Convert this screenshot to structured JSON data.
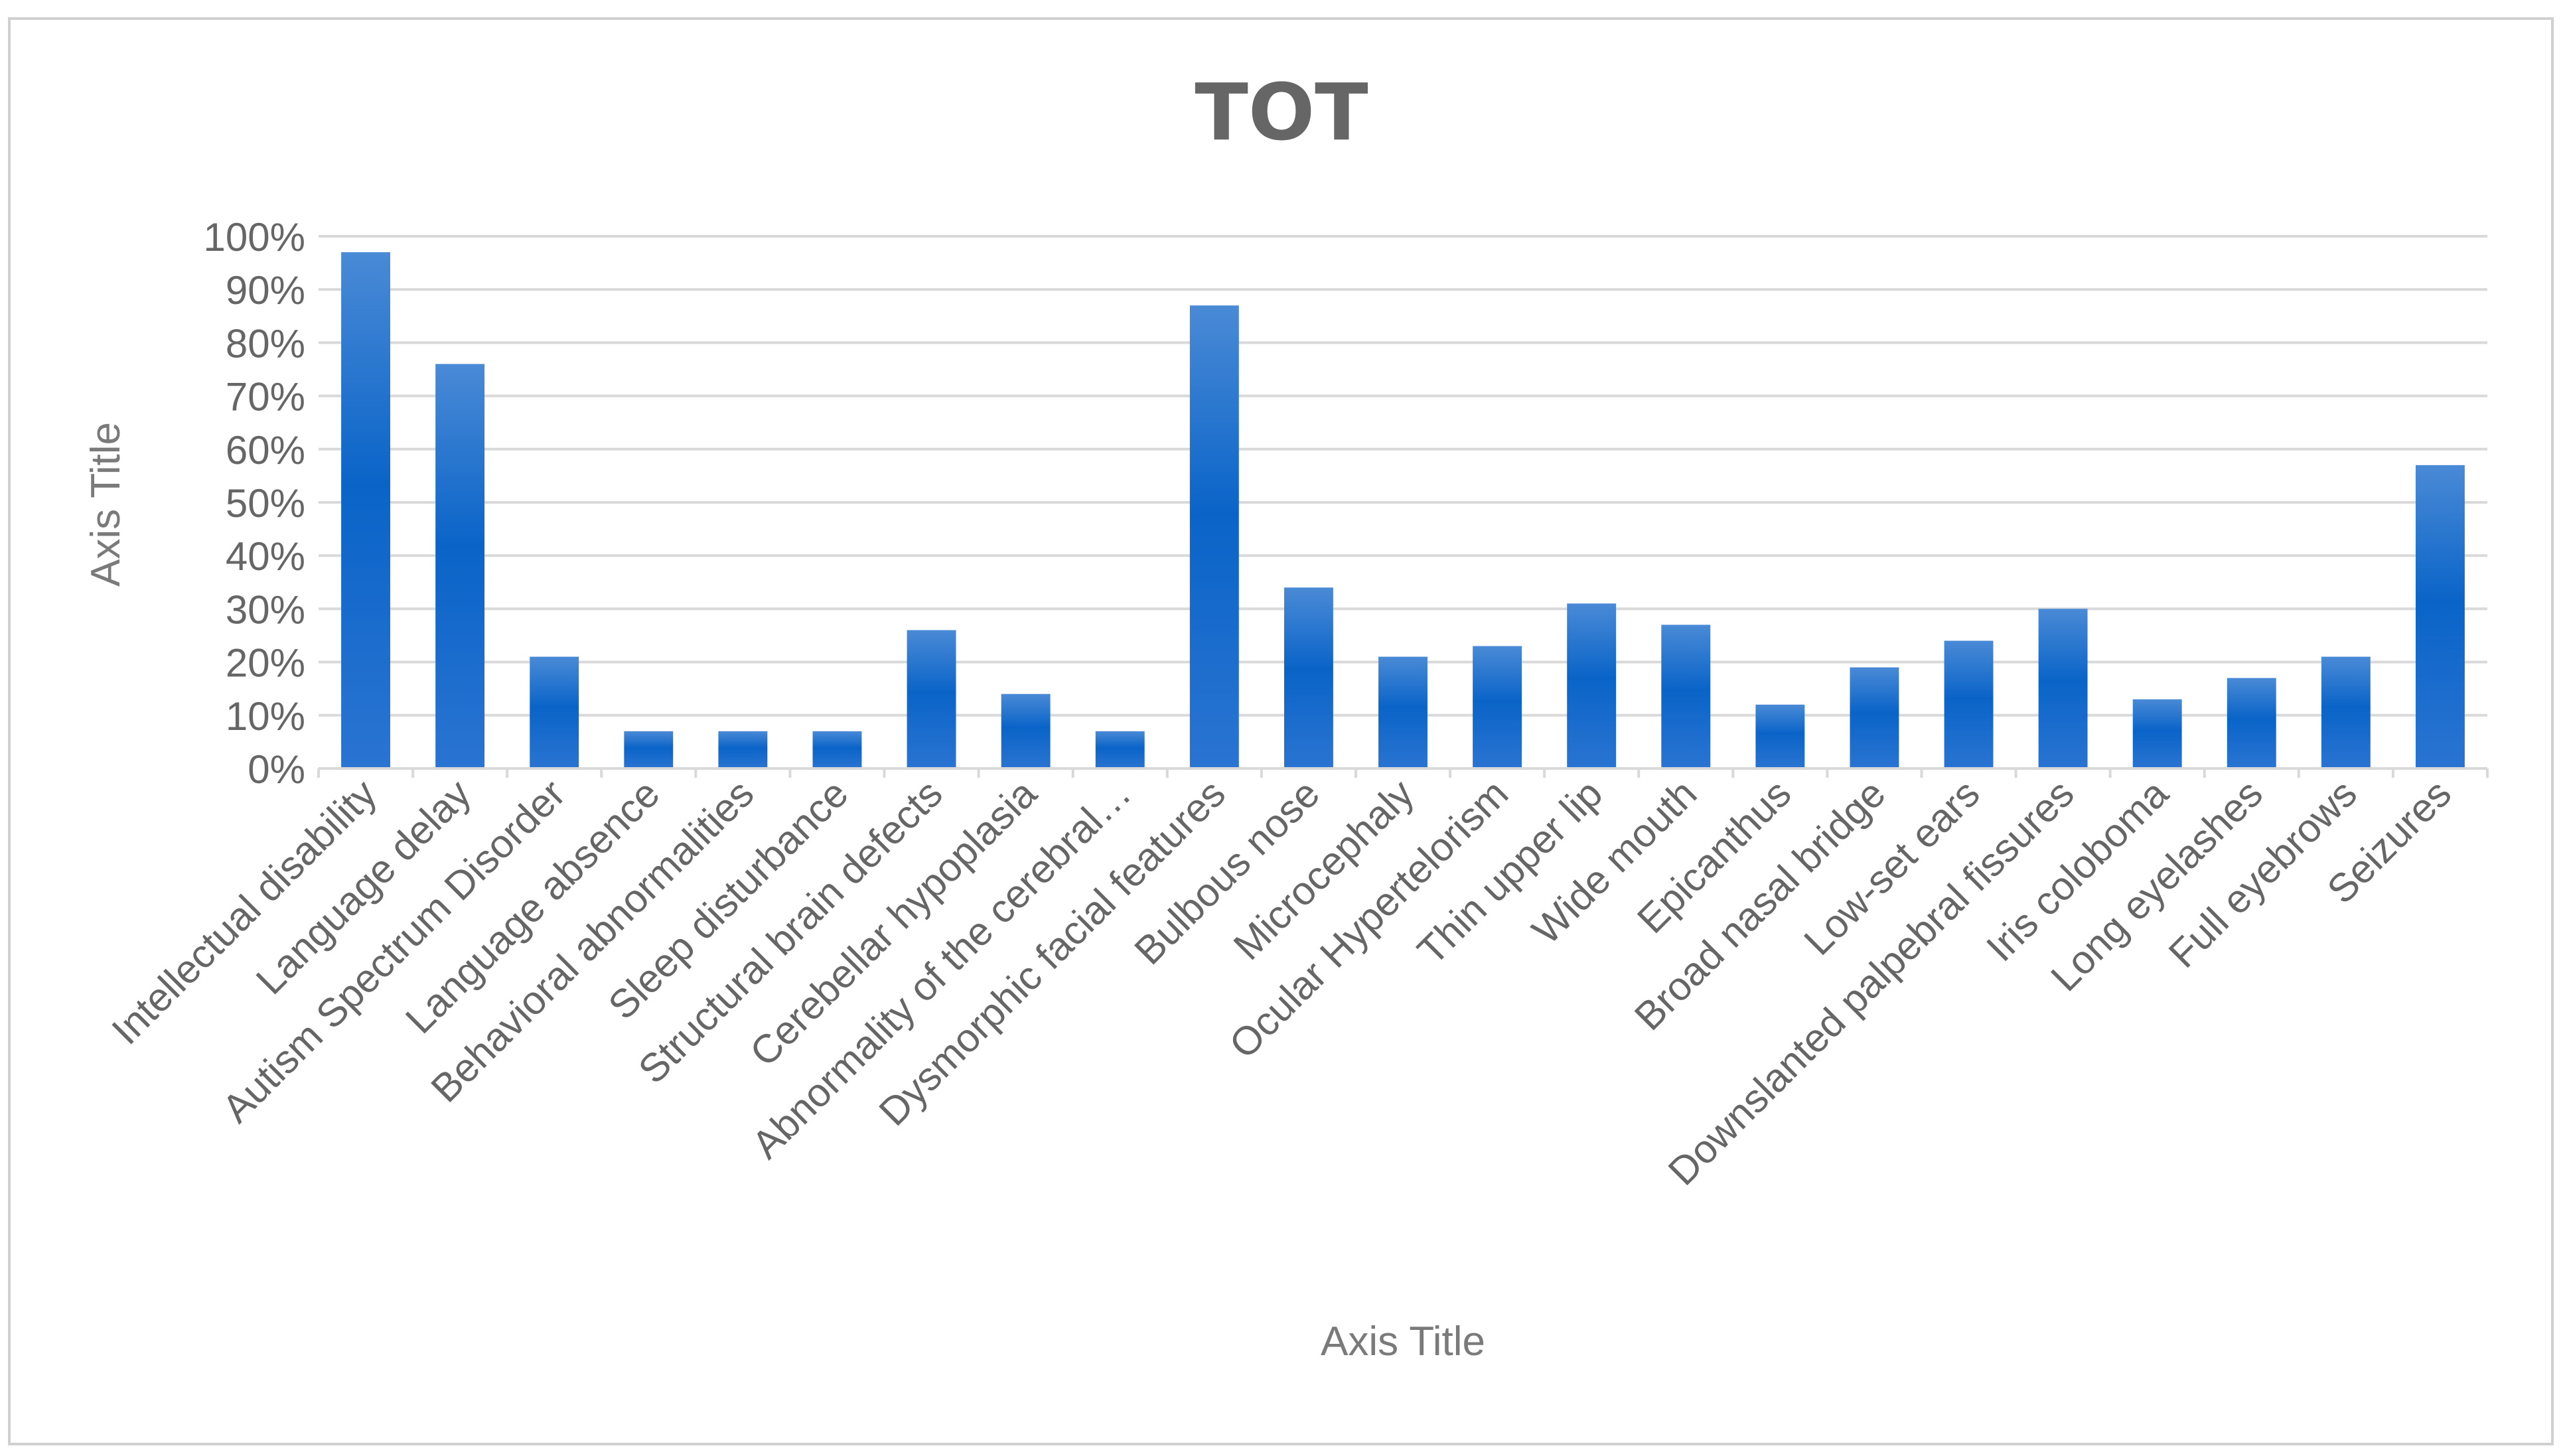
{
  "chart_data": {
    "type": "bar",
    "title": "TOT",
    "xlabel": "Axis Title",
    "ylabel": "Axis Title",
    "ylim": [
      0,
      100
    ],
    "y_ticks": [
      "0%",
      "10%",
      "20%",
      "30%",
      "40%",
      "50%",
      "60%",
      "70%",
      "80%",
      "90%",
      "100%"
    ],
    "grid": true,
    "legend": "none",
    "categories": [
      "Intellectual disability",
      "Language delay",
      "Autism Spectrum Disorder",
      "Language absence",
      "Behavioral abnormalities",
      "Sleep disturbance",
      "Structural brain defects",
      "Cerebellar hypoplasia",
      "Abnormality of the cerebral…",
      "Dysmorphic facial features",
      "Bulbous nose",
      "Microcephaly",
      "Ocular Hypertelorism",
      "Thin upper lip",
      "Wide mouth",
      "Epicanthus",
      "Broad nasal bridge",
      "Low-set ears",
      "Downslanted palpebral fissures",
      "Iris coloboma",
      "Long eyelashes",
      "Full eyebrows",
      "Seizures"
    ],
    "values": [
      97,
      76,
      21,
      7,
      7,
      7,
      26,
      14,
      7,
      87,
      34,
      21,
      23,
      31,
      27,
      12,
      19,
      24,
      30,
      13,
      17,
      21,
      57
    ],
    "colors": {
      "bar_top": "#4a8ad6",
      "bar_mid": "#0a64c8",
      "bar_bottom": "#1f6fd0",
      "grid": "#d9d9d9",
      "frame": "#d0d0d0"
    }
  }
}
